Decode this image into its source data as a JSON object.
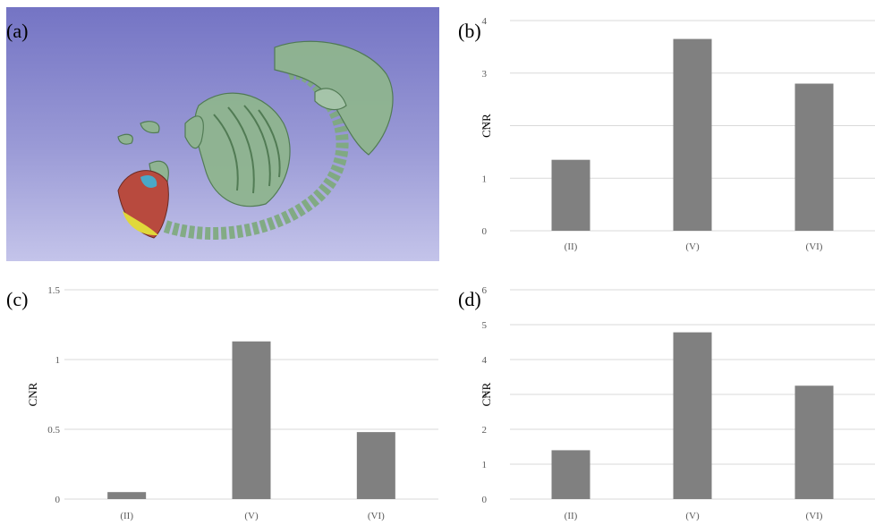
{
  "panel_a": {
    "label": "(a)"
  },
  "chart_data": [
    {
      "panel": "(b)",
      "type": "bar",
      "categories": [
        "(II)",
        "(V)",
        "(VI)"
      ],
      "values": [
        1.35,
        3.65,
        2.8
      ],
      "ylabel": "CNR",
      "ylim": [
        0,
        4
      ],
      "yticks": [
        "0",
        "1",
        "2",
        "3",
        "4"
      ],
      "grid": true,
      "bar_color": "#808080"
    },
    {
      "panel": "(c)",
      "type": "bar",
      "categories": [
        "(II)",
        "(V)",
        "(VI)"
      ],
      "values": [
        0.05,
        1.13,
        0.48
      ],
      "ylabel": "CNR",
      "ylim": [
        0,
        1.5
      ],
      "yticks": [
        "0",
        "0.5",
        "1",
        "1.5"
      ],
      "grid": true,
      "bar_color": "#808080"
    },
    {
      "panel": "(d)",
      "type": "bar",
      "categories": [
        "(II)",
        "(V)",
        "(VI)"
      ],
      "values": [
        1.4,
        4.78,
        3.25
      ],
      "ylabel": "CNR",
      "ylim": [
        0,
        6
      ],
      "yticks": [
        "0",
        "1",
        "2",
        "3",
        "4",
        "5",
        "6"
      ],
      "grid": true,
      "bar_color": "#808080"
    }
  ]
}
